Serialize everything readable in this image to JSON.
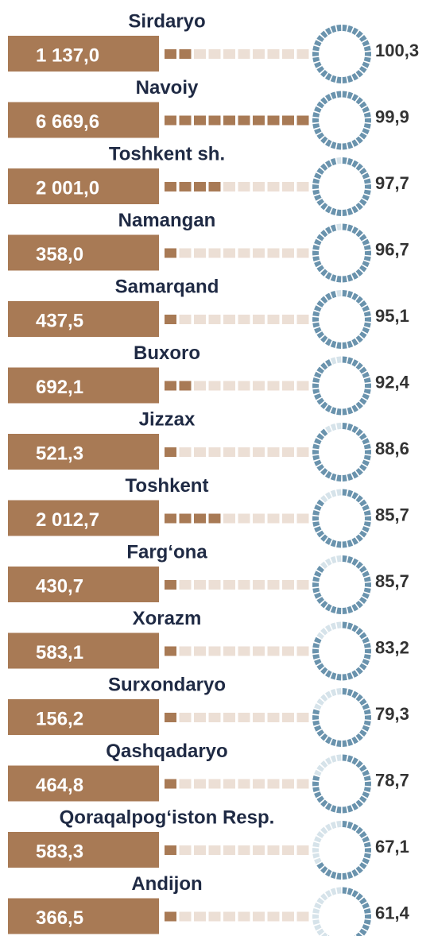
{
  "chart_data": {
    "type": "infographic",
    "categories": [
      "Sirdaryo",
      "Navoiy",
      "Toshkent sh.",
      "Namangan",
      "Samarqand",
      "Buxoro",
      "Jizzax",
      "Toshkent",
      "Farg‘ona",
      "Xorazm",
      "Surxondaryo",
      "Qashqadaryo",
      "Qoraqalpog‘iston Resp.",
      "Andijon"
    ],
    "values": [
      1137.0,
      6669.6,
      2001.0,
      358.0,
      437.5,
      692.1,
      521.3,
      2012.7,
      430.7,
      583.1,
      156.2,
      464.8,
      583.3,
      366.5
    ],
    "value_labels": [
      "1 137,0",
      "6 669,6",
      "2 001,0",
      "358,0",
      "437,5",
      "692,1",
      "521,3",
      "2 012,7",
      "430,7",
      "583,1",
      "156,2",
      "464,8",
      "583,3",
      "366,5"
    ],
    "percent": [
      100.3,
      99.9,
      97.7,
      96.7,
      95.1,
      92.4,
      88.6,
      85.7,
      85.7,
      83.2,
      79.3,
      78.7,
      67.1,
      61.4
    ],
    "percent_labels": [
      "100,3",
      "99,9",
      "97,7",
      "96,7",
      "95,1",
      "92,4",
      "88,6",
      "85,7",
      "85,7",
      "83,2",
      "79,3",
      "78,7",
      "67,1",
      "61,4"
    ],
    "color": "#a87a55",
    "ring_color": "#6a93ad"
  }
}
